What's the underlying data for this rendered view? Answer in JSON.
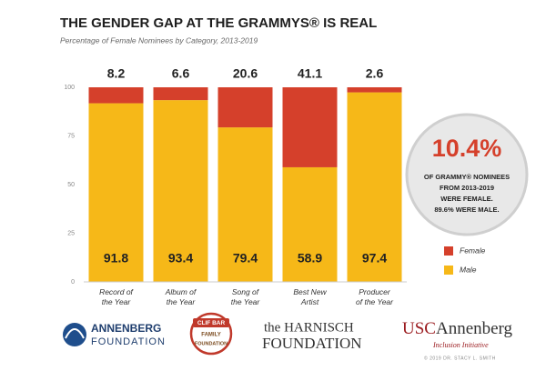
{
  "chart_data": {
    "type": "stacked_bar",
    "title": "THE GENDER GAP AT THE GRAMMYS® IS REAL",
    "subtitle": "Percentage of Female Nominees by Category, 2013-2019",
    "categories": [
      [
        "Record of",
        "the Year"
      ],
      [
        "Album of",
        "the Year"
      ],
      [
        "Song of",
        "the Year"
      ],
      [
        "Best New",
        "Artist"
      ],
      [
        "Producer",
        "of the Year"
      ]
    ],
    "series": [
      {
        "name": "Male",
        "color": "#f6b818",
        "values": [
          91.8,
          93.4,
          79.4,
          58.9,
          97.4
        ]
      },
      {
        "name": "Female",
        "color": "#d5402b",
        "values": [
          8.2,
          6.6,
          20.6,
          41.1,
          2.6
        ]
      }
    ],
    "ylim": [
      0,
      100
    ],
    "yticks": [
      0,
      25,
      50,
      75,
      100
    ],
    "grid": false,
    "legend": "right",
    "callout": {
      "headline": "10.4%",
      "lines": [
        "OF GRAMMY® NOMINEES",
        "FROM 2013-2019",
        "WERE FEMALE.",
        "89.6% WERE MALE."
      ]
    }
  },
  "footer": {
    "annenberg": [
      "ANNENBERG",
      "FOUNDATION"
    ],
    "clif": [
      "CLIF BAR",
      "FAMILY",
      "FOUNDATION"
    ],
    "harnisch": [
      "the HARNISCH",
      "FOUNDATION"
    ],
    "usc": {
      "red": "USC",
      "dark": "Annenberg",
      "sub": "Inclusion Initiative",
      "credit": "© 2019 DR. STACY L. SMITH"
    }
  }
}
